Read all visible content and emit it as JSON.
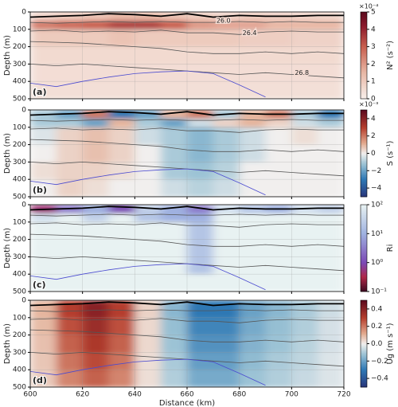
{
  "chart_data": [
    {
      "type": "heatmap",
      "panel_label": "(a)",
      "ylabel": "Depth (m)",
      "clabel": "N² (s⁻²)",
      "colorbar_offset": "×10⁻⁴",
      "xlim": [
        600,
        720
      ],
      "xticks": [
        600,
        620,
        640,
        660,
        680,
        700,
        720
      ],
      "ylim": [
        0,
        500
      ],
      "y_inverted": true,
      "yticks": [
        0,
        100,
        200,
        300,
        400,
        500
      ],
      "grid": true,
      "x_edges": [
        600,
        610,
        620,
        630,
        640,
        650,
        660,
        670,
        680,
        690,
        700,
        710,
        720
      ],
      "depth_edges": [
        0,
        50,
        100,
        200,
        300,
        400,
        500
      ],
      "values": [
        [
          0.8,
          1,
          1.2,
          1.5,
          1.5,
          1.2,
          1,
          0.8,
          1,
          0.9,
          0.8,
          0.7
        ],
        [
          2.5,
          2.8,
          3,
          3.5,
          3.5,
          3,
          2,
          1.8,
          1.8,
          1.5,
          1.5,
          1.5
        ],
        [
          1,
          1,
          1,
          1.2,
          1,
          1,
          1,
          1,
          0.9,
          0.9,
          0.8,
          0.8
        ],
        [
          0.6,
          0.6,
          0.6,
          0.6,
          0.6,
          0.6,
          0.6,
          0.6,
          0.6,
          0.6,
          0.6,
          0.6
        ],
        [
          0.5,
          0.5,
          0.5,
          0.5,
          0.5,
          0.5,
          0.5,
          0.5,
          0.5,
          0.5,
          0.5,
          0.5
        ],
        [
          0.45,
          0.45,
          0.45,
          0.45,
          0.45,
          0.45,
          0.45,
          0.45,
          0.45,
          0.45,
          0.45,
          0.45
        ]
      ],
      "clim": [
        0,
        5
      ],
      "cticks": [
        0,
        1,
        2,
        3,
        4,
        5
      ],
      "lines_x": [
        600,
        610,
        620,
        630,
        640,
        650,
        660,
        670,
        680,
        690,
        700,
        710,
        720
      ],
      "lines": [
        {
          "color": "#000000",
          "values": [
            30,
            25,
            20,
            10,
            15,
            25,
            10,
            30,
            20,
            25,
            25,
            20,
            20
          ]
        },
        {
          "name": "26.0",
          "color": "#555555",
          "values": [
            60,
            65,
            60,
            55,
            60,
            55,
            60,
            60,
            55,
            60,
            55,
            60,
            60
          ]
        },
        {
          "name": "26.4",
          "color": "#555555",
          "values": [
            110,
            105,
            115,
            110,
            115,
            105,
            120,
            120,
            130,
            115,
            110,
            115,
            115
          ]
        },
        {
          "color": "#555555",
          "values": [
            170,
            175,
            180,
            190,
            200,
            210,
            230,
            240,
            240,
            230,
            240,
            230,
            240
          ]
        },
        {
          "name": "26.8",
          "color": "#555555",
          "values": [
            300,
            310,
            300,
            310,
            320,
            330,
            340,
            350,
            360,
            350,
            360,
            370,
            380
          ]
        },
        {
          "color": "#4a4ad0",
          "values": [
            410,
            430,
            400,
            375,
            355,
            345,
            340,
            355,
            420,
            490,
            null,
            null,
            null
          ]
        }
      ]
    },
    {
      "type": "heatmap",
      "panel_label": "(b)",
      "ylabel": "Depth (m)",
      "clabel": "S (s⁻¹)",
      "colorbar_offset": "×10⁻³",
      "xlim": [
        600,
        720
      ],
      "xticks": [
        600,
        620,
        640,
        660,
        680,
        700,
        720
      ],
      "ylim": [
        0,
        500
      ],
      "y_inverted": true,
      "yticks": [
        0,
        100,
        200,
        300,
        400,
        500
      ],
      "grid": true,
      "x_edges": [
        600,
        610,
        620,
        630,
        640,
        650,
        660,
        670,
        680,
        690,
        700,
        710,
        720
      ],
      "depth_edges": [
        0,
        50,
        100,
        200,
        300,
        400,
        500
      ],
      "values": [
        [
          -1,
          -2,
          2,
          -3,
          -2,
          1,
          2,
          -1,
          1,
          2,
          -1,
          -3
        ],
        [
          -1,
          -1,
          -2,
          1,
          -1,
          -2,
          -0.5,
          0.5,
          1,
          0.5,
          -0.5,
          -1
        ],
        [
          -0.3,
          0.5,
          0.8,
          0.5,
          -0.5,
          -1,
          -1.5,
          -1,
          -0.5,
          0,
          0.3,
          0
        ],
        [
          0,
          0.5,
          0.8,
          0.5,
          0,
          -1,
          -1.5,
          -1,
          -0.5,
          0,
          0,
          0
        ],
        [
          0.3,
          0.5,
          0.5,
          0.3,
          0,
          -1,
          -1.2,
          -0.8,
          0,
          0,
          0,
          0
        ],
        [
          0,
          0.5,
          0.3,
          0,
          0,
          -0.5,
          -0.8,
          -0.5,
          0,
          0,
          0,
          0
        ]
      ],
      "clim": [
        -5,
        5
      ],
      "cticks": [
        {
          "value": -4,
          "label": "−4"
        },
        {
          "value": -2,
          "label": "−2"
        },
        0,
        2,
        4
      ]
    },
    {
      "type": "heatmap",
      "panel_label": "(c)",
      "ylabel": "Depth (m)",
      "clabel": "Ri",
      "xlim": [
        600,
        720
      ],
      "xticks": [
        600,
        620,
        640,
        660,
        680,
        700,
        720
      ],
      "ylim": [
        0,
        500
      ],
      "y_inverted": true,
      "yticks": [
        0,
        100,
        200,
        300,
        400,
        500
      ],
      "grid": true,
      "x_edges": [
        600,
        610,
        620,
        630,
        640,
        650,
        660,
        670,
        680,
        690,
        700,
        710,
        720
      ],
      "depth_edges": [
        0,
        50,
        100,
        200,
        300,
        400,
        500
      ],
      "values": [
        [
          0.5,
          3,
          10,
          1,
          30,
          10,
          3,
          50,
          20,
          10,
          50,
          30
        ],
        [
          50,
          100,
          30,
          100,
          20,
          10,
          10,
          100,
          100,
          100,
          100,
          100
        ],
        [
          100,
          100,
          100,
          100,
          100,
          100,
          20,
          100,
          100,
          100,
          100,
          100
        ],
        [
          100,
          100,
          100,
          100,
          100,
          100,
          20,
          100,
          100,
          100,
          100,
          100
        ],
        [
          100,
          100,
          100,
          100,
          100,
          100,
          20,
          100,
          100,
          100,
          100,
          100
        ],
        [
          100,
          100,
          100,
          100,
          100,
          100,
          100,
          100,
          100,
          100,
          100,
          100
        ]
      ],
      "clim": [
        0.1,
        100
      ],
      "color_log": true,
      "cticks": [
        {
          "value": 0.1,
          "label": "10⁻¹"
        },
        {
          "value": 1,
          "label": "10⁰"
        },
        {
          "value": 10,
          "label": "10¹"
        },
        {
          "value": 100,
          "label": "10²"
        }
      ]
    },
    {
      "type": "heatmap",
      "panel_label": "(d)",
      "ylabel": "Depth (m)",
      "clabel": "Ug (m s⁻¹)",
      "xlabel": "Distance (km)",
      "xlim": [
        600,
        720
      ],
      "xticks": [
        600,
        620,
        640,
        660,
        680,
        700,
        720
      ],
      "ylim": [
        0,
        500
      ],
      "y_inverted": true,
      "yticks": [
        0,
        100,
        200,
        300,
        400,
        500
      ],
      "grid": true,
      "x_edges": [
        600,
        610,
        620,
        630,
        640,
        650,
        660,
        670,
        680,
        690,
        700,
        710,
        720
      ],
      "depth_edges": [
        0,
        50,
        100,
        200,
        300,
        400,
        500
      ],
      "values": [
        [
          0.1,
          0.3,
          0.4,
          0.3,
          0.05,
          -0.15,
          -0.3,
          -0.3,
          -0.2,
          -0.15,
          -0.1,
          -0.05
        ],
        [
          0.1,
          0.3,
          0.4,
          0.3,
          0.05,
          -0.15,
          -0.3,
          -0.3,
          -0.2,
          -0.15,
          -0.1,
          -0.05
        ],
        [
          0.09,
          0.27,
          0.36,
          0.27,
          0.04,
          -0.13,
          -0.27,
          -0.27,
          -0.18,
          -0.13,
          -0.09,
          -0.04
        ],
        [
          0.08,
          0.24,
          0.32,
          0.24,
          0.04,
          -0.12,
          -0.24,
          -0.24,
          -0.16,
          -0.12,
          -0.08,
          -0.04
        ],
        [
          0.07,
          0.21,
          0.28,
          0.21,
          0.03,
          -0.1,
          -0.21,
          -0.21,
          -0.14,
          -0.1,
          -0.07,
          -0.03
        ],
        [
          0.06,
          0.18,
          0.24,
          0.18,
          0.03,
          -0.09,
          -0.18,
          -0.18,
          -0.12,
          -0.09,
          -0.06,
          -0.03
        ]
      ],
      "clim": [
        -0.5,
        0.5
      ],
      "cticks": [
        {
          "value": -0.4,
          "label": "−0.4"
        },
        {
          "value": -0.2,
          "label": "−0.2"
        },
        {
          "value": 0,
          "label": "0.0"
        },
        0.2,
        0.4
      ]
    }
  ]
}
